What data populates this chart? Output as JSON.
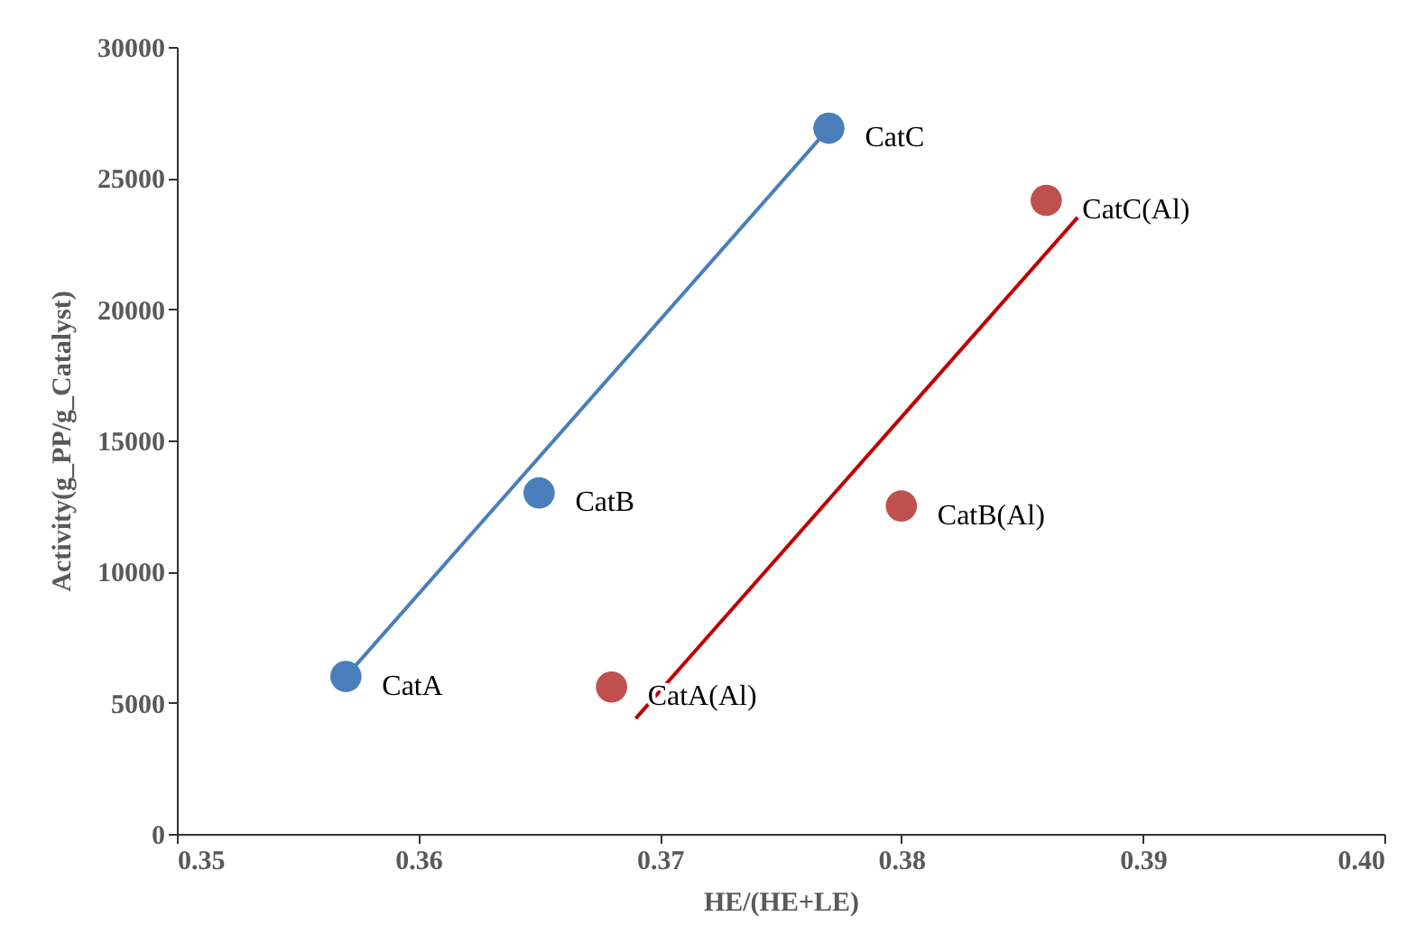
{
  "chart_data": {
    "type": "scatter",
    "xlabel": "HE/(HE+LE)",
    "ylabel": "Activity(g_PP/g_Catalyst)",
    "xlim": [
      0.35,
      0.4
    ],
    "xticks": [
      "0.35",
      0.36,
      0.37,
      0.38,
      0.39,
      "0.40"
    ],
    "ylim": [
      0,
      30000
    ],
    "yticks": [
      0,
      5000,
      10000,
      15000,
      20000,
      25000,
      30000
    ],
    "grid": false,
    "marker": "circle",
    "series": [
      {
        "color": "#4a7ebb",
        "x": [
          0.357,
          0.365,
          0.377
        ],
        "values": [
          6000,
          13000,
          26900
        ]
      },
      {
        "color": "#c0504d",
        "x": [
          0.368,
          0.38,
          0.386
        ],
        "values": [
          5600,
          12500,
          24150
        ]
      },
      {
        "type": "line",
        "marker": "none",
        "color": "#4a7ebb",
        "x": [
          0.357,
          0.377
        ],
        "values": [
          6000,
          26900
        ]
      },
      {
        "type": "line",
        "marker": "none",
        "color": "#c00000",
        "x": [
          0.369,
          0.3873
        ],
        "values": [
          4400,
          23500
        ]
      }
    ],
    "annotations": [
      {
        "text": "CatA",
        "x": 0.357,
        "y": 6000
      },
      {
        "text": "CatB",
        "x": 0.365,
        "y": 13000
      },
      {
        "text": "CatC",
        "x": 0.377,
        "y": 26900
      },
      {
        "text": "CatA(Al)",
        "x": 0.368,
        "y": 5600
      },
      {
        "text": "CatB(Al)",
        "x": 0.38,
        "y": 12500
      },
      {
        "text": "CatC(Al)",
        "x": 0.386,
        "y": 24150
      }
    ]
  }
}
